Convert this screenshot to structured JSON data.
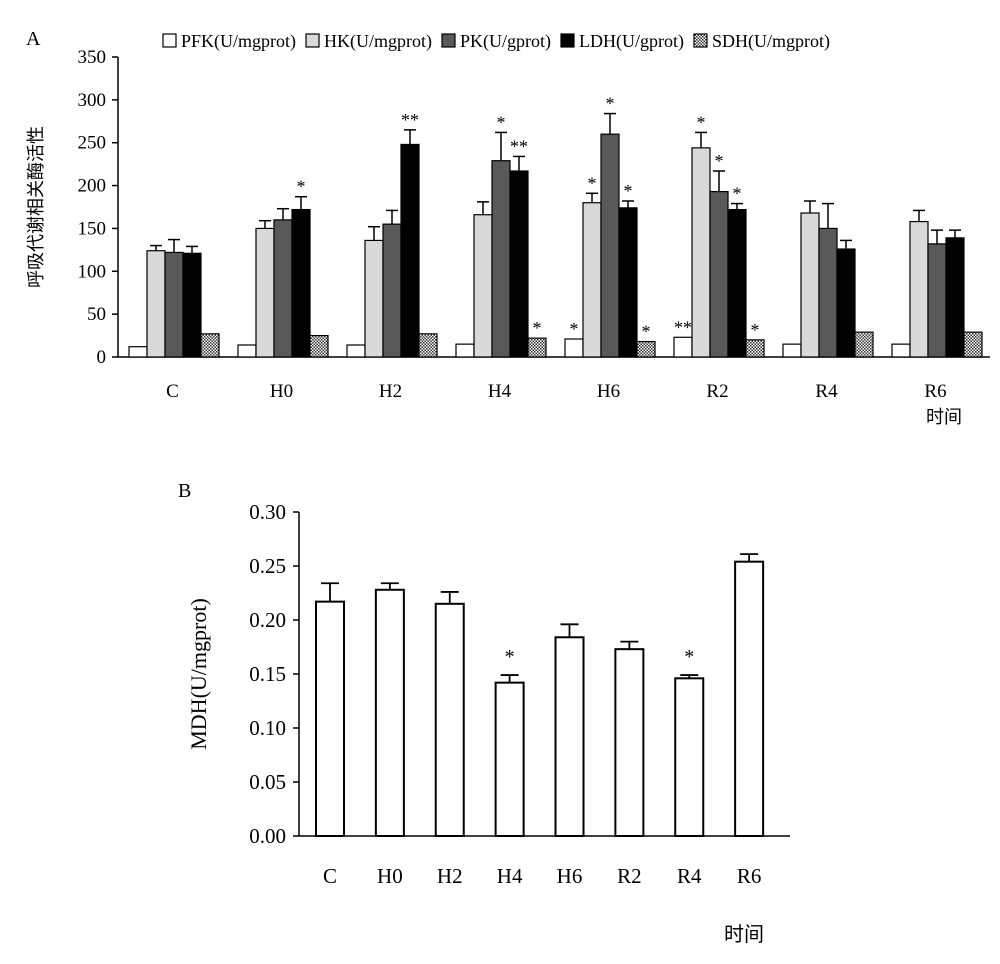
{
  "chart_data": [
    {
      "panel": "A",
      "type": "bar",
      "ylabel": "呼吸代谢相关酶活性",
      "xlabel": "时间",
      "ylim": [
        0,
        350
      ],
      "yticks": [
        0,
        50,
        100,
        150,
        200,
        250,
        300,
        350
      ],
      "categories": [
        "C",
        "H0",
        "H2",
        "H4",
        "H6",
        "R2",
        "R4",
        "R6"
      ],
      "series": [
        {
          "name": "PFK(U/mgprot)",
          "fill": "#ffffff",
          "values": [
            12,
            14,
            14,
            15,
            21,
            23,
            15,
            15
          ],
          "errors": [
            0,
            0,
            0,
            0,
            0,
            0,
            0,
            0
          ],
          "marks": [
            "",
            "",
            "",
            "",
            "*",
            "**",
            "",
            ""
          ]
        },
        {
          "name": "HK(U/mgprot)",
          "fill": "#d9d9d9",
          "values": [
            124,
            150,
            136,
            166,
            180,
            244,
            168,
            158
          ],
          "errors": [
            6,
            9,
            16,
            15,
            11,
            18,
            14,
            13
          ],
          "marks": [
            "",
            "",
            "",
            "",
            "*",
            "*",
            "",
            ""
          ]
        },
        {
          "name": "PK(U/gprot)",
          "fill": "#595959",
          "values": [
            122,
            160,
            155,
            229,
            260,
            193,
            150,
            132
          ],
          "errors": [
            15,
            13,
            16,
            33,
            24,
            24,
            29,
            16
          ],
          "marks": [
            "",
            "",
            "",
            "*",
            "*",
            "*",
            "",
            ""
          ]
        },
        {
          "name": "LDH(U/gprot)",
          "fill": "#000000",
          "values": [
            121,
            172,
            248,
            217,
            174,
            172,
            126,
            139
          ],
          "errors": [
            8,
            15,
            17,
            17,
            8,
            7,
            10,
            9
          ],
          "marks": [
            "",
            "*",
            "**",
            "**",
            "*",
            "*",
            "",
            ""
          ]
        },
        {
          "name": "SDH(U/mgprot)",
          "fill": "pattern",
          "values": [
            27,
            25,
            27,
            22,
            18,
            20,
            29,
            29
          ],
          "errors": [
            0,
            0,
            0,
            0,
            0,
            0,
            0,
            0
          ],
          "marks": [
            "",
            "",
            "",
            "*",
            "*",
            "*",
            "",
            ""
          ]
        }
      ]
    },
    {
      "panel": "B",
      "type": "bar",
      "ylabel": "MDH(U/mgprot)",
      "xlabel": "时间",
      "ylim": [
        0,
        0.3
      ],
      "yticks": [
        "0.00",
        "0.05",
        "0.10",
        "0.15",
        "0.20",
        "0.25",
        "0.30"
      ],
      "categories": [
        "C",
        "H0",
        "H2",
        "H4",
        "H6",
        "R2",
        "R4",
        "R6"
      ],
      "series": [
        {
          "name": "MDH",
          "fill": "#ffffff",
          "values": [
            0.217,
            0.228,
            0.215,
            0.142,
            0.184,
            0.173,
            0.146,
            0.254
          ],
          "errors": [
            0.017,
            0.006,
            0.011,
            0.007,
            0.012,
            0.007,
            0.003,
            0.007
          ],
          "marks": [
            "",
            "",
            "",
            "*",
            "",
            "",
            "*",
            ""
          ]
        }
      ]
    }
  ]
}
